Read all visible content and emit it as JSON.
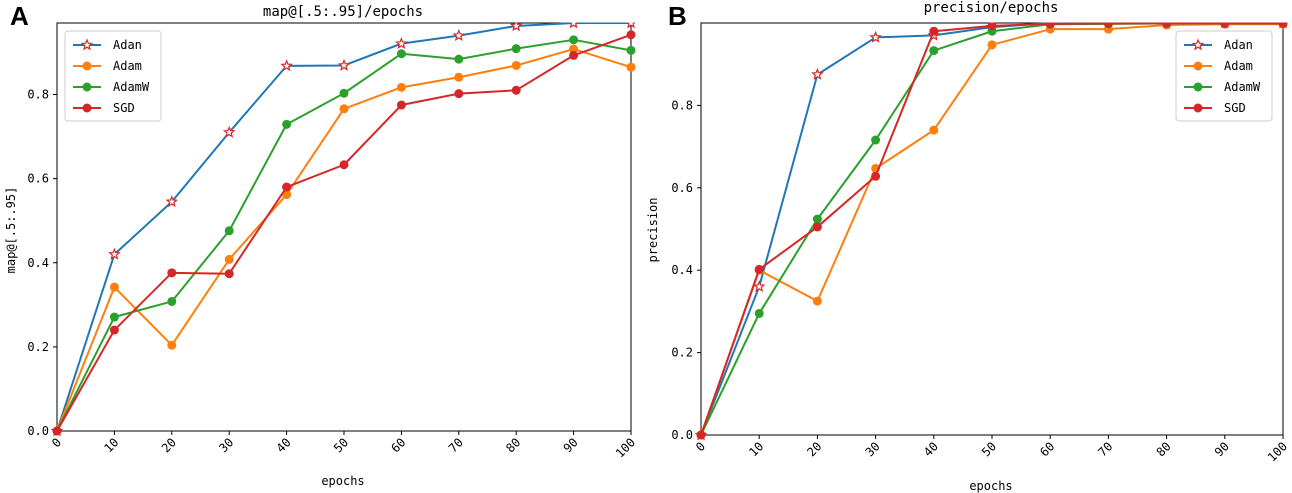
{
  "chart_data": [
    {
      "panel": "A",
      "type": "line",
      "title": "map@[.5:.95]/epochs",
      "xlabel": "epochs",
      "ylabel": "map@[.5:.95]",
      "xlim": [
        0,
        100
      ],
      "ylim": [
        0,
        0.97
      ],
      "x": [
        0,
        10,
        20,
        30,
        40,
        50,
        60,
        70,
        80,
        90,
        100
      ],
      "x_ticks": [
        "0",
        "10",
        "20",
        "30",
        "40",
        "50",
        "60",
        "70",
        "80",
        "90",
        "100"
      ],
      "y_ticks": [
        {
          "value": 0.0,
          "label": "0.0"
        },
        {
          "value": 0.2,
          "label": "0.2"
        },
        {
          "value": 0.4,
          "label": "0.4"
        },
        {
          "value": 0.6,
          "label": "0.6"
        },
        {
          "value": 0.8,
          "label": "0.8"
        }
      ],
      "legend_position": "top-left",
      "series": [
        {
          "name": "Adan",
          "color": "#1f77b4",
          "marker": "star",
          "values": [
            0.0,
            0.42,
            0.545,
            0.71,
            0.868,
            0.869,
            0.921,
            0.94,
            0.963,
            0.97,
            0.97
          ]
        },
        {
          "name": "Adam",
          "color": "#ff7f0e",
          "marker": "circle",
          "values": [
            0.0,
            0.342,
            0.204,
            0.408,
            0.562,
            0.766,
            0.817,
            0.841,
            0.869,
            0.908,
            0.865
          ]
        },
        {
          "name": "AdamW",
          "color": "#2ca02c",
          "marker": "circle",
          "values": [
            0.0,
            0.271,
            0.308,
            0.476,
            0.729,
            0.803,
            0.897,
            0.884,
            0.909,
            0.93,
            0.905
          ]
        },
        {
          "name": "SGD",
          "color": "#d62728",
          "marker": "circle",
          "values": [
            0.0,
            0.24,
            0.376,
            0.374,
            0.58,
            0.633,
            0.775,
            0.802,
            0.81,
            0.893,
            0.942
          ]
        }
      ]
    },
    {
      "panel": "B",
      "type": "line",
      "title": "precision/epochs",
      "xlabel": "epochs",
      "ylabel": "precision",
      "xlim": [
        0,
        100
      ],
      "ylim": [
        0,
        1.0
      ],
      "x": [
        0,
        10,
        20,
        30,
        40,
        50,
        60,
        70,
        80,
        90,
        100
      ],
      "x_ticks": [
        "0",
        "10",
        "20",
        "30",
        "40",
        "50",
        "60",
        "70",
        "80",
        "90",
        "100"
      ],
      "y_ticks": [
        {
          "value": 0.0,
          "label": "0.0"
        },
        {
          "value": 0.2,
          "label": "0.2"
        },
        {
          "value": 0.4,
          "label": "0.4"
        },
        {
          "value": 0.6,
          "label": "0.6"
        },
        {
          "value": 0.8,
          "label": "0.8"
        }
      ],
      "legend_position": "top-right",
      "series": [
        {
          "name": "Adan",
          "color": "#1f77b4",
          "marker": "star",
          "values": [
            0.0,
            0.36,
            0.875,
            0.965,
            0.97,
            0.99,
            1.0,
            1.0,
            1.0,
            1.0,
            1.0
          ]
        },
        {
          "name": "Adam",
          "color": "#ff7f0e",
          "marker": "circle",
          "values": [
            0.0,
            0.4,
            0.325,
            0.647,
            0.74,
            0.947,
            0.985,
            0.985,
            0.995,
            0.997,
            0.997
          ]
        },
        {
          "name": "AdamW",
          "color": "#2ca02c",
          "marker": "circle",
          "values": [
            0.0,
            0.295,
            0.524,
            0.716,
            0.933,
            0.98,
            0.997,
            0.998,
            0.999,
            0.999,
            0.999
          ]
        },
        {
          "name": "SGD",
          "color": "#d62728",
          "marker": "circle",
          "values": [
            0.0,
            0.402,
            0.505,
            0.628,
            0.98,
            0.993,
            0.998,
            0.999,
            0.999,
            0.999,
            0.999
          ]
        }
      ]
    }
  ]
}
